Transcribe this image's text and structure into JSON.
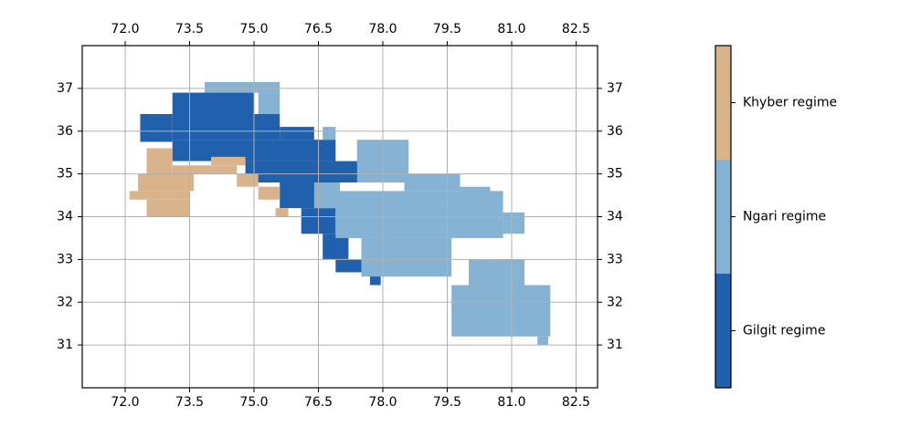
{
  "chart_data": {
    "type": "map",
    "xlim": [
      71,
      83
    ],
    "ylim": [
      30,
      38
    ],
    "xticks": [
      {
        "value": 72,
        "label": "72.0"
      },
      {
        "value": 73.5,
        "label": "73.5"
      },
      {
        "value": 75,
        "label": "75.0"
      },
      {
        "value": 76.5,
        "label": "76.5"
      },
      {
        "value": 78,
        "label": "78.0"
      },
      {
        "value": 79.5,
        "label": "79.5"
      },
      {
        "value": 81,
        "label": "81.0"
      },
      {
        "value": 82.5,
        "label": "82.5"
      }
    ],
    "yticks": [
      31,
      32,
      33,
      34,
      35,
      36,
      37
    ],
    "grid": true,
    "series": [
      {
        "name": "Gilgit regime",
        "color": "#2160ac",
        "boxes": [
          [
            73.1,
            75.0,
            35.8,
            36.9
          ],
          [
            75.0,
            75.6,
            35.8,
            36.4
          ],
          [
            75.6,
            76.4,
            35.8,
            36.1
          ],
          [
            72.35,
            73.1,
            35.75,
            36.4
          ],
          [
            73.1,
            76.9,
            35.3,
            35.8
          ],
          [
            74.8,
            77.6,
            34.8,
            35.3
          ],
          [
            75.6,
            76.5,
            34.2,
            34.8
          ],
          [
            76.1,
            76.9,
            33.6,
            34.2
          ],
          [
            76.6,
            77.2,
            33.0,
            33.6
          ],
          [
            76.9,
            77.5,
            32.7,
            33.0
          ],
          [
            77.7,
            77.95,
            32.4,
            32.7
          ]
        ]
      },
      {
        "name": "Ngari regime",
        "color": "#86b3d3",
        "boxes": [
          [
            73.85,
            75.6,
            36.9,
            37.15
          ],
          [
            75.1,
            75.6,
            36.4,
            36.9
          ],
          [
            76.6,
            76.9,
            35.8,
            36.1
          ],
          [
            77.4,
            78.6,
            34.8,
            35.8
          ],
          [
            76.4,
            77.0,
            34.2,
            34.8
          ],
          [
            76.9,
            80.8,
            33.5,
            34.6
          ],
          [
            80.8,
            81.3,
            33.6,
            34.1
          ],
          [
            77.5,
            79.6,
            32.6,
            33.5
          ],
          [
            79.6,
            81.9,
            31.2,
            32.4
          ],
          [
            80.0,
            81.3,
            32.4,
            33.0
          ],
          [
            81.6,
            81.85,
            31.0,
            31.2
          ],
          [
            78.5,
            79.8,
            34.6,
            35.0
          ],
          [
            79.8,
            80.5,
            34.5,
            34.7
          ]
        ]
      },
      {
        "name": "Khyber regime",
        "color": "#d9b38c",
        "boxes": [
          [
            72.5,
            73.1,
            35.0,
            35.6
          ],
          [
            72.3,
            73.6,
            34.6,
            35.0
          ],
          [
            72.1,
            73.5,
            34.4,
            34.6
          ],
          [
            72.5,
            73.5,
            34.0,
            34.4
          ],
          [
            73.1,
            74.6,
            35.0,
            35.2
          ],
          [
            74.0,
            74.8,
            35.2,
            35.4
          ],
          [
            74.6,
            75.1,
            34.7,
            35.0
          ],
          [
            75.1,
            75.6,
            34.4,
            34.7
          ],
          [
            75.5,
            75.8,
            34.0,
            34.2
          ]
        ]
      }
    ]
  }
}
